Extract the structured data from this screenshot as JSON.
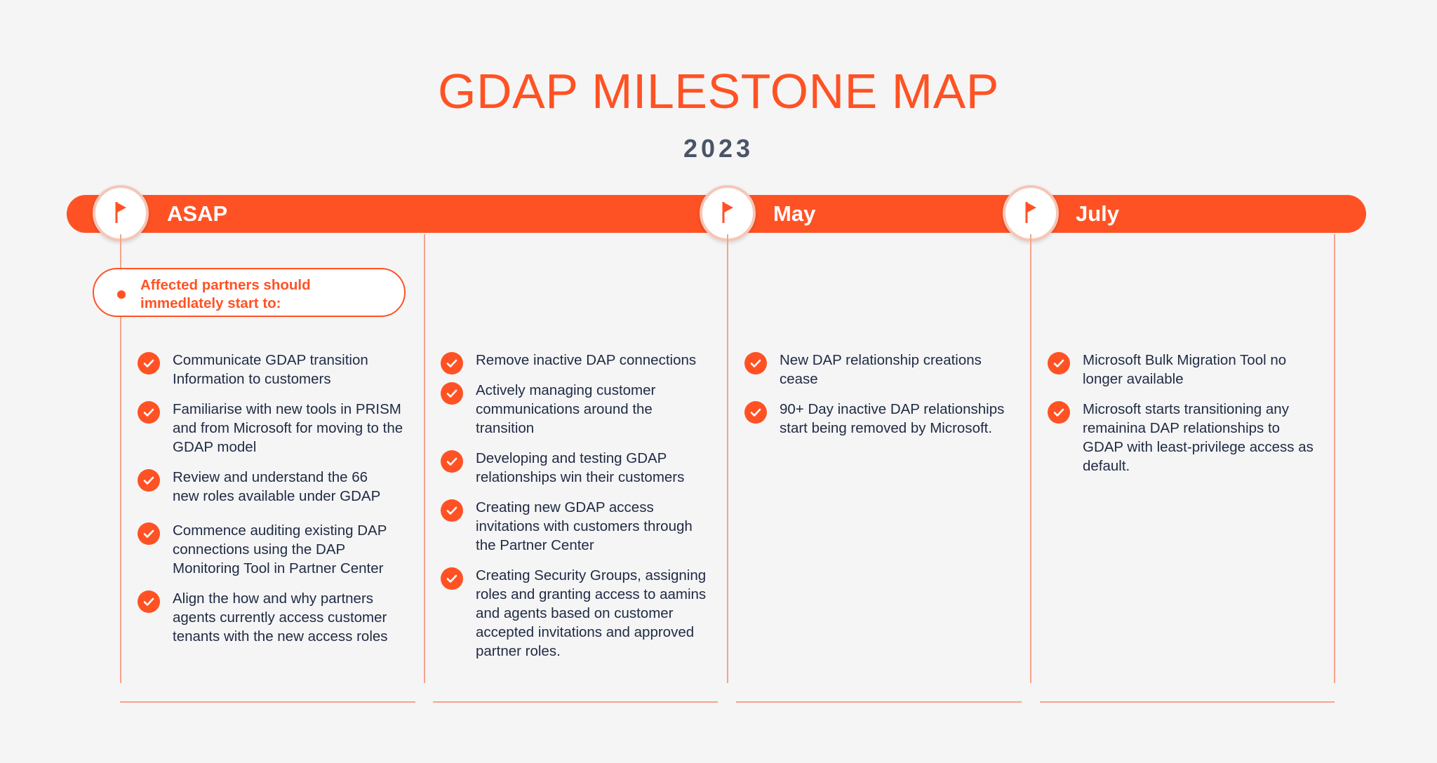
{
  "title": "GDAP MILESTONE MAP",
  "year": "2023",
  "accent_color": "#ff5224",
  "phases": [
    {
      "label": "ASAP",
      "icon": "flag-icon"
    },
    {
      "label": "May",
      "icon": "flag-icon"
    },
    {
      "label": "July",
      "icon": "flag-icon"
    }
  ],
  "callout": "Affected partners should immedlately start to:",
  "columns": [
    {
      "items": [
        "Communicate GDAP transition Information to customers",
        "Familiarise with new tools in PRISM and from Microsoft for moving to the GDAP model",
        "Review and understand the 66 new roles available under GDAP",
        "Commence auditing existing DAP connections using the DAP Monitoring Tool in Partner Center",
        "Align the how and why partners agents currently access customer tenants with the new access roles"
      ]
    },
    {
      "items": [
        "Remove inactive DAP connections",
        "Actively managing customer communications around the transition",
        "Developing and testing GDAP relationships win their customers",
        "Creating new GDAP access invitations with customers through the Partner Center",
        "Creating Security Groups, assigning roles and granting access to aamins and agents based on customer accepted invitations and approved partner roles."
      ]
    },
    {
      "items": [
        "New DAP relationship creations cease",
        "90+ Day inactive DAP relationships start being removed by Microsoft."
      ]
    },
    {
      "items": [
        "Microsoft Bulk Migration Tool no longer available",
        "Microsoft starts transitioning any remainina DAP relationships to GDAP with least-privilege access as default."
      ]
    }
  ]
}
